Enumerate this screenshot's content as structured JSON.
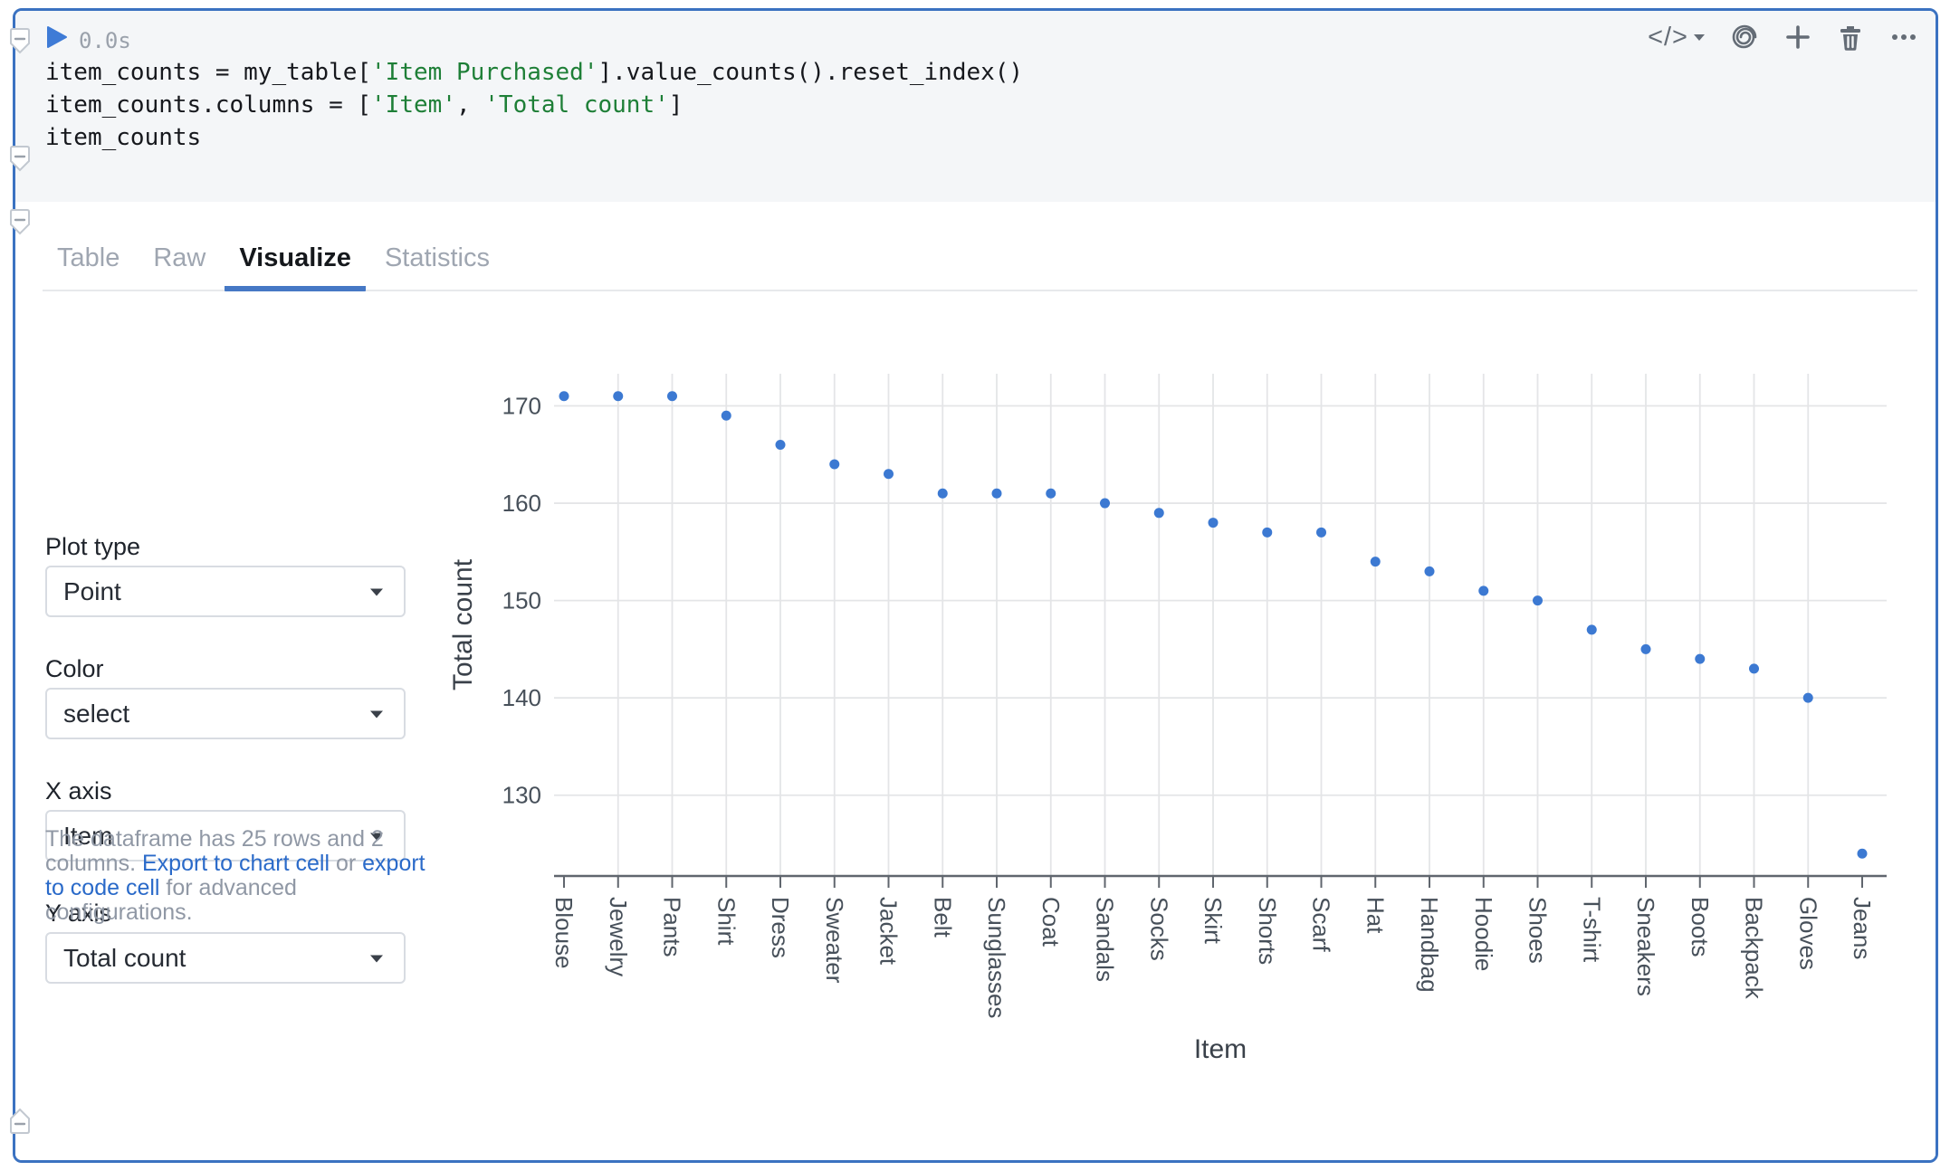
{
  "cell": {
    "runtime": "0.0s",
    "code_lines": [
      [
        {
          "kind": "plain",
          "text": "item_counts = my_table["
        },
        {
          "kind": "string",
          "text": "'Item Purchased'"
        },
        {
          "kind": "plain",
          "text": "].value_counts().reset_index()"
        }
      ],
      [
        {
          "kind": "plain",
          "text": "item_counts.columns = ["
        },
        {
          "kind": "string",
          "text": "'Item'"
        },
        {
          "kind": "plain",
          "text": ", "
        },
        {
          "kind": "string",
          "text": "'Total count'"
        },
        {
          "kind": "plain",
          "text": "]"
        }
      ],
      [
        {
          "kind": "plain",
          "text": "item_counts"
        }
      ]
    ],
    "toolbar": {
      "language_label": "</>",
      "icons": [
        "block-type-menu",
        "ai-spiral",
        "add-block",
        "delete-block",
        "more-options"
      ]
    }
  },
  "output": {
    "tabs": [
      {
        "label": "Table",
        "active": false
      },
      {
        "label": "Raw",
        "active": false
      },
      {
        "label": "Visualize",
        "active": true
      },
      {
        "label": "Statistics",
        "active": false
      }
    ]
  },
  "controls": {
    "fields": [
      {
        "label": "Plot type",
        "value": "Point"
      },
      {
        "label": "Color",
        "value": "select"
      },
      {
        "label": "X axis",
        "value": "Item"
      },
      {
        "label": "Y axis",
        "value": "Total count"
      }
    ]
  },
  "info": {
    "segments": [
      {
        "text": "The dataframe has 25 rows and 2 columns. ",
        "link": false
      },
      {
        "text": "Export to chart cell",
        "link": true
      },
      {
        "text": " or ",
        "link": false
      },
      {
        "text": "export to code cell",
        "link": true
      },
      {
        "text": " for advanced configurations.",
        "link": false
      }
    ]
  },
  "chart_data": {
    "type": "point",
    "title": "",
    "xlabel": "Item",
    "ylabel": "Total count",
    "categories": [
      "Blouse",
      "Jewelry",
      "Pants",
      "Shirt",
      "Dress",
      "Sweater",
      "Jacket",
      "Belt",
      "Sunglasses",
      "Coat",
      "Sandals",
      "Socks",
      "Skirt",
      "Shorts",
      "Scarf",
      "Hat",
      "Handbag",
      "Hoodie",
      "Shoes",
      "T-shirt",
      "Sneakers",
      "Boots",
      "Backpack",
      "Gloves",
      "Jeans"
    ],
    "values": [
      171,
      171,
      171,
      169,
      166,
      164,
      163,
      161,
      161,
      161,
      160,
      159,
      158,
      157,
      157,
      154,
      153,
      151,
      150,
      147,
      145,
      144,
      143,
      140,
      124
    ],
    "yticks": [
      130,
      140,
      150,
      160,
      170
    ],
    "ylim": [
      121.7,
      173.3
    ],
    "grid": true,
    "legend": "none",
    "point_color": "#3c79d2",
    "gridline_color": "#e4e5e7",
    "axis_color": "#60666e"
  },
  "colors": {
    "cell_border": "#3b72c1",
    "code_bg": "#f4f6f8",
    "accent_blue": "#3e7bd6",
    "tab_underline": "#4678c5",
    "link": "#2a6ac9",
    "string_green": "#1e7f37"
  }
}
